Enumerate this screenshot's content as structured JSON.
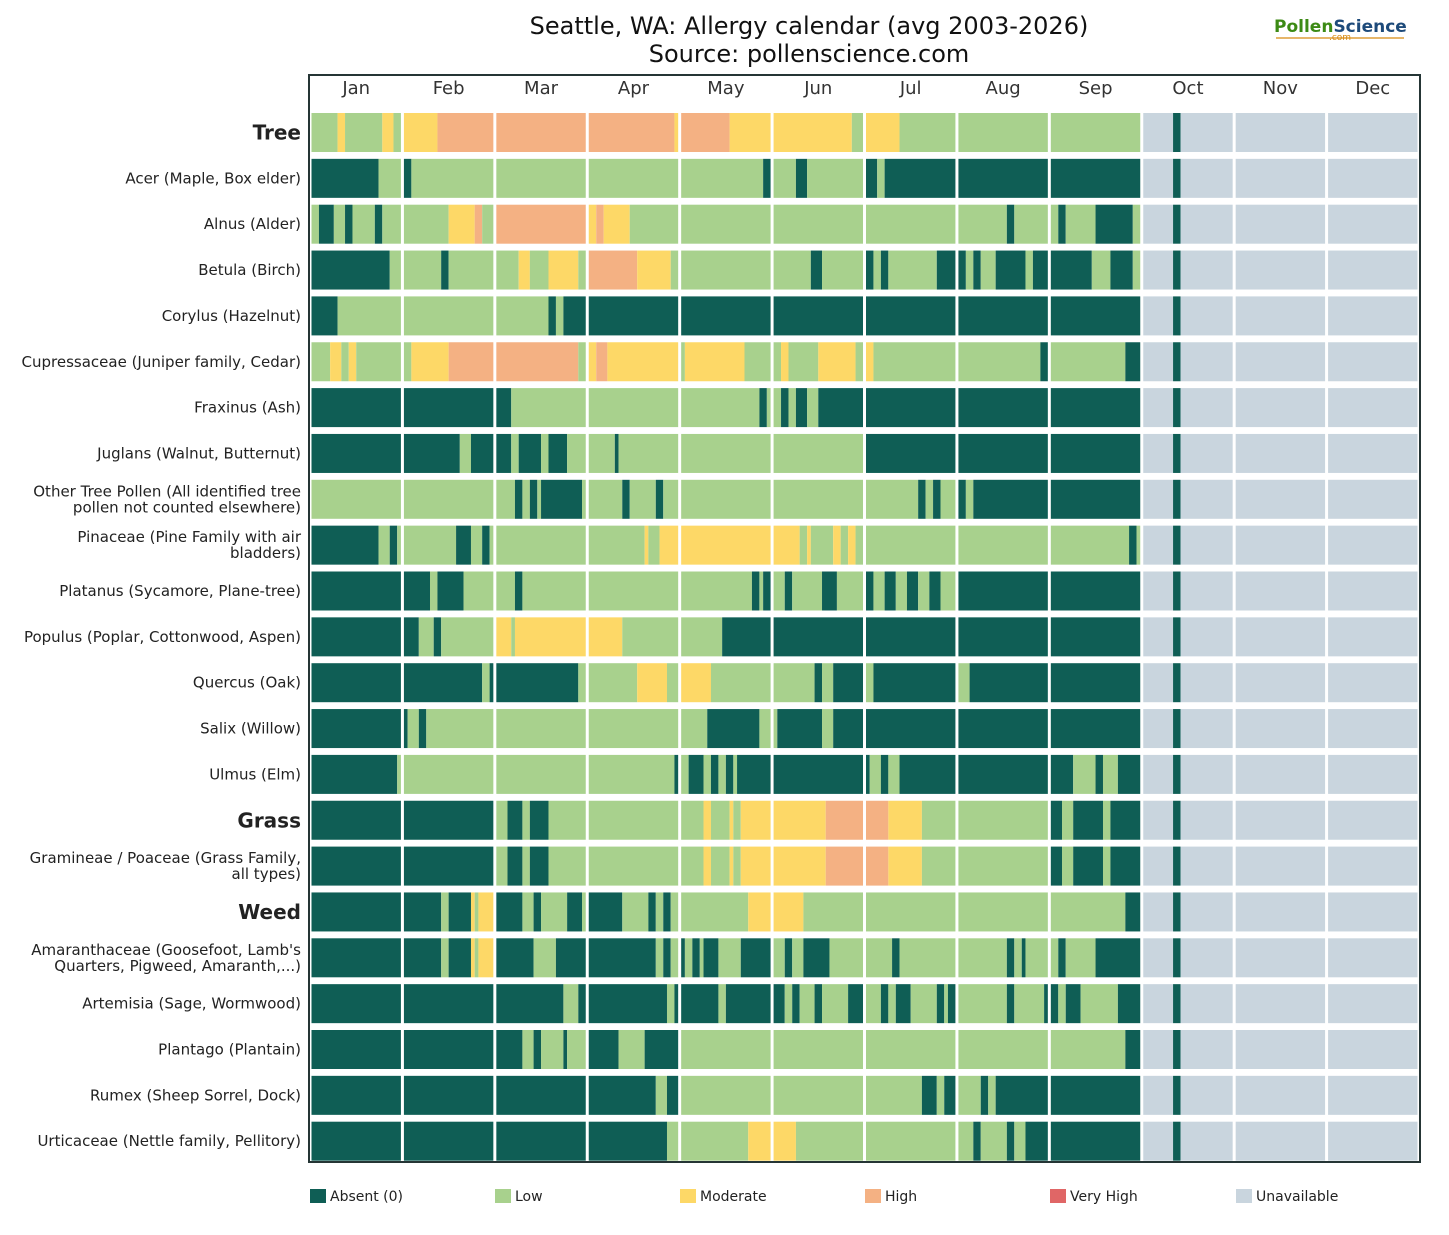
{
  "chart_data": {
    "type": "heatmap",
    "title": "Seattle, WA: Allergy calendar (avg 2003-2026)",
    "subtitle": "Source: pollenscience.com",
    "logo": {
      "part1": "Pollen",
      "part2": "Science",
      "sub": ".com"
    },
    "months": [
      "Jan",
      "Feb",
      "Mar",
      "Apr",
      "May",
      "Jun",
      "Jul",
      "Aug",
      "Sep",
      "Oct",
      "Nov",
      "Dec"
    ],
    "levels": [
      {
        "key": "A",
        "name": "Absent (0)",
        "color": "#0f5e55"
      },
      {
        "key": "L",
        "name": "Low",
        "color": "#a8d18d"
      },
      {
        "key": "M",
        "name": "Moderate",
        "color": "#fdd867"
      },
      {
        "key": "H",
        "name": "High",
        "color": "#f4b183"
      },
      {
        "key": "V",
        "name": "Very High",
        "color": "#e06666"
      },
      {
        "key": "U",
        "name": "Unavailable",
        "color": "#c9d5de"
      }
    ],
    "rows": [
      {
        "label": "Tree",
        "group": true,
        "segments": [
          "LLLLLLLMMLLLLLLLLLLMMMLL",
          "MMMMMMMMMHHHHHHHHHHHHHHH",
          "HHHHHHHHHHHHHHHHHHHHHHHH",
          "HHHHHHHHHHHHHHHHHHHHHHHM",
          "HHHHHHHHHHHHHMMMMMMMMMMM",
          "MMMMMMMMMMMMMMMMMMMMMLLL",
          "MMMMMMMMMLLLLLLLLLLLLLLL",
          "LLLLLLLLLLLLLLLLLLLLLLLL",
          "LLLLLLLLLLLLLLLLLLLLLLLL",
          "UUUUUUUUAAUUUUUUUUUUUUUU",
          "UUUUUUUUUUUUUUUUUUUUUUUU",
          "UUUUUUUUUUUUUUUUUUUUUUUU"
        ]
      },
      {
        "label": "Acer (Maple, Box elder)",
        "segments": [
          "AAAAAAAAAAAAAAAAAALLLLLL",
          "AALLLLLLLLLLLLLLLLLLLLLL",
          "LLLLLLLLLLLLLLLLLLLLLLLL",
          "LLLLLLLLLLLLLLLLLLLLLLLL",
          "LLLLLLLLLLLLLLLLLLLLLLAA",
          "LLLLLLAAALLLLLLLLLLLLLLL",
          "AAALLAAAAAAAAAAAAAAAAAAA",
          "AAAAAAAAAAAAAAAAAAAAAAAA",
          "AAAAAAAAAAAAAAAAAAAAAAAA",
          "UUUUUUUUAAUUUUUUUUUUUUUU",
          "UUUUUUUUUUUUUUUUUUUUUUUU",
          "UUUUUUUUUUUUUUUUUUUUUUUU"
        ]
      },
      {
        "label": "Alnus (Alder)",
        "segments": [
          "LLAAAALLLAALLLLLLAALLLLL",
          "LLLLLLLLLLLLMMMMMMMHHLLL",
          "HHHHHHHHHHHHHHHHHHHHHHHH",
          "MMHHMMMMMMMLLLLLLLLLLLLL",
          "LLLLLLLLLLLLLLLLLLLLLLLL",
          "LLLLLLLLLLLLLLLLLLLLLLLL",
          "LLLLLLLLLLLLLLLLLLLLLLLL",
          "LLLLLLLLLLLLLAALLLLLLLLL",
          "LLAALLLLLLLLAAAAAAAAAALL",
          "UUUUUUUUAAUUUUUUUUUUUUUU",
          "UUUUUUUUUUUUUUUUUUUUUUUU",
          "UUUUUUUUUUUUUUUUUUUUUUUU"
        ]
      },
      {
        "label": "Betula (Birch)",
        "segments": [
          "AAAAAAAAAAAAAAAAAAAAALLL",
          "LLLLLLLLLLAALLLLLLLLLLLL",
          "LLLLLLMMMLLLLLMMMMMMMMLL",
          "HHHHHHHHHHHHHMMMMMMMMMLL",
          "LLLLLLLLLLLLLLLLLLLLLLLL",
          "LLLLLLLLLLAAALLLLLLLLLLL",
          "AALLAALLLLLLLLLLLLLAAAAA",
          "AALLAALLLLAAAAAAAALLAAAA",
          "AAAAAAAAAAALLLLLAAAAAALL",
          "UUUUUUUUAAUUUUUUUUUUUUUU",
          "UUUUUUUUUUUUUUUUUUUUUUUU",
          "UUUUUUUUUUUUUUUUUUUUUUUU"
        ]
      },
      {
        "label": "Corylus (Hazelnut)",
        "segments": [
          "AAAAAAALLLLLLLLLLLLLLLLL",
          "LLLLLLLLLLLLLLLLLLLLLLLL",
          "LLLLLLLLLLLLLLAALLAAAAAA",
          "AAAAAAAAAAAAAAAAAAAAAAAA",
          "AAAAAAAAAAAAAAAAAAAAAAAA",
          "AAAAAAAAAAAAAAAAAAAAAAAA",
          "AAAAAAAAAAAAAAAAAAAAAAAA",
          "AAAAAAAAAAAAAAAAAAAAAAAA",
          "AAAAAAAAAAAAAAAAAAAAAAAA",
          "UUUUUUUUAAUUUUUUUUUUUUUU",
          "UUUUUUUUUUUUUUUUUUUUUUUU",
          "UUUUUUUUUUUUUUUUUUUUUUUU"
        ]
      },
      {
        "label": "Cupressaceae (Juniper family, Cedar)",
        "segments": [
          "LLLLLMMMLLMMLLLLLLLLLLLL",
          "LLMMMMMMMMMMHHHHHHHHHHHH",
          "HHHHHHHHHHHHHHHHHHHHHHLL",
          "MMHHHMMMMMMMMMMMMMMMMMMM",
          "LMMMMMMMMMMMMMMMMLLLLLLL",
          "LLMMLLLLLLLLMMMMMMMMMMLL",
          "MMLLLLLLLLLLLLLLLLLLLLLL",
          "LLLLLLLLLLLLLLLLLLLLLLAA",
          "LLLLLLLLLLLLLLLLLLLLAAAA",
          "UUUUUUUUAAUUUUUUUUUUUUUU",
          "UUUUUUUUUUUUUUUUUUUUUUUU",
          "UUUUUUUUUUUUUUUUUUUUUUUU"
        ]
      },
      {
        "label": "Fraxinus (Ash)",
        "segments": [
          "AAAAAAAAAAAAAAAAAAAAAAAA",
          "AAAAAAAAAAAAAAAAAAAAAAAA",
          "AAAALLLLLLLLLLLLLLLLLLLL",
          "LLLLLLLLLLLLLLLLLLLLLLLL",
          "LLLLLLLLLLLLLLLLLLLLLAAL",
          "LLAALLAAALLLAAAAAAAAAAAA",
          "AAAAAAAAAAAAAAAAAAAAAAAA",
          "AAAAAAAAAAAAAAAAAAAAAAAA",
          "AAAAAAAAAAAAAAAAAAAAAAAA",
          "UUUUUUUUAAUUUUUUUUUUUUUU",
          "UUUUUUUUUUUUUUUUUUUUUUUU",
          "UUUUUUUUUUUUUUUUUUUUUUUU"
        ]
      },
      {
        "label": "Juglans (Walnut, Butternut)",
        "segments": [
          "AAAAAAAAAAAAAAAAAAAAAAAA",
          "AAAAAAAAAAAAAAALLLAAAAAA",
          "AAAALLAAAAAALLAAAAALLLLL",
          "LLLLLLLALLLLLLLLLLLLLLLL",
          "LLLLLLLLLLLLLLLLLLLLLLLL",
          "LLLLLLLLLLLLLLLLLLLLLLLL",
          "AAAAAAAAAAAAAAAAAAAAAAAA",
          "AAAAAAAAAAAAAAAAAAAAAAAA",
          "AAAAAAAAAAAAAAAAAAAAAAAA",
          "UUUUUUUUAAUUUUUUUUUUUUUU",
          "UUUUUUUUUUUUUUUUUUUUUUUU",
          "UUUUUUUUUUUUUUUUUUUUUUUU"
        ]
      },
      {
        "label": "Other Tree Pollen (All identified tree pollen not counted elsewhere)",
        "segments": [
          "LLLLLLLLLLLLLLLLLLLLLLLL",
          "LLLLLLLLLLLLLLLLLLLLLLLL",
          "LLLLLAALLAALAAAAAAAAAAAL",
          "LLLLLLLLLAALLLLLLLAALLLL",
          "LLLLLLLLLLLLLLLLLLLLLLLL",
          "LLLLLLLLLLLLLLLLLLLLLLLL",
          "LLLLLLLLLLLLLLAALLAALLLL",
          "AALLAAAAAAAAAAAAAAAAAAAA",
          "AAAAAAAAAAAAAAAAAAAAAAAA",
          "UUUUUUUUAAUUUUUUUUUUUUUU",
          "UUUUUUUUUUUUUUUUUUUUUUUU",
          "UUUUUUUUUUUUUUUUUUUUUUUU"
        ]
      },
      {
        "label": "Pinaceae (Pine Family with air bladders)",
        "segments": [
          "AAAAAAAAAAAAAAAAAALLLAAL",
          "LLLLLLLLLLLLLLAAAALLLAAL",
          "LLLLLLLLLLLLLLLLLLLLLLLL",
          "LLLLLLLLLLLLLLLMLLLMMMMM",
          "MMMMMMMMMMMMMMMMMMMMMMMM",
          "MMMMMMMLLMLLLLLLMMLLMMLL",
          "LLLLLLLLLLLLLLLLLLLLLLLL",
          "LLLLLLLLLLLLLLLLLLLLLLLL",
          "LLLLLLLLLLLLLLLLLLLLLAAL",
          "UUUUUUUUAAUUUUUUUUUUUUUU",
          "UUUUUUUUUUUUUUUUUUUUUUUU",
          "UUUUUUUUUUUUUUUUUUUUUUUU"
        ]
      },
      {
        "label": "Platanus (Sycamore, Plane-tree)",
        "segments": [
          "AAAAAAAAAAAAAAAAAAAAAAAA",
          "AAAAAAALLAAAAAAALLLLLLLL",
          "LLLLLAALLLLLLLLLLLLLLLLL",
          "LLLLLLLLLLLLLLLLLLLLLLLL",
          "LLLLLLLLLLLLLLLLLLLAALAA",
          "LLLAALLLLLLLLAAAALLLLLLL",
          "AALLLAAALLLAAALLLAAALLLL",
          "AAAAAAAAAAAAAAAAAAAAAAAA",
          "AAAAAAAAAAAAAAAAAAAAAAAA",
          "UUUUUUUUAAUUUUUUUUUUUUUU",
          "UUUUUUUUUUUUUUUUUUUUUUUU",
          "UUUUUUUUUUUUUUUUUUUUUUUU"
        ]
      },
      {
        "label": "Populus (Poplar, Cottonwood, Aspen)",
        "segments": [
          "AAAAAAAAAAAAAAAAAAAAAAAA",
          "AAAALLLLAALLLLLLLLLLLLLL",
          "MMMMLMMMMMMMMMMMMMMMMMMM",
          "MMMMMMMMMLLLLLLLLLLLLLLL",
          "LLLLLLLLLLLAAAAAAAAAAAAA",
          "AAAAAAAAAAAAAAAAAAAAAAAA",
          "AAAAAAAAAAAAAAAAAAAAAAAA",
          "AAAAAAAAAAAAAAAAAAAAAAAA",
          "AAAAAAAAAAAAAAAAAAAAAAAA",
          "UUUUUUUUAAUUUUUUUUUUUUUU",
          "UUUUUUUUUUUUUUUUUUUUUUUU",
          "UUUUUUUUUUUUUUUUUUUUUUUU"
        ]
      },
      {
        "label": "Quercus (Oak)",
        "segments": [
          "AAAAAAAAAAAAAAAAAAAAAAAA",
          "AAAAAAAAAAAAAAAAAAAAALLA",
          "AAAAAAAAAAAAAAAAAAAAAALL",
          "LLLLLLLLLLLLLMMMMMMMMLLL",
          "MMMMMMMMLLLLLLLLLLLLLLLL",
          "LLLLLLLLLLLAALLLAAAAAAAA",
          "LLAAAAAAAAAAAAAAAAAAAAAA",
          "LLLAAAAAAAAAAAAAAAAAAAAA",
          "AAAAAAAAAAAAAAAAAAAAAAAA",
          "UUUUUUUUAAUUUUUUUUUUUUUU",
          "UUUUUUUUUUUUUUUUUUUUUUUU",
          "UUUUUUUUUUUUUUUUUUUUUUUU"
        ]
      },
      {
        "label": "Salix (Willow)",
        "segments": [
          "AAAAAAAAAAAAAAAAAAAAAAAA",
          "ALLLAALLLLLLLLLLLLLLLLLL",
          "LLLLLLLLLLLLLLLLLLLLLLLL",
          "LLLLLLLLLLLLLLLLLLLLLLLL",
          "LLLLLLLAAAAAAAAAAAAAALLL",
          "LAAAAAAAAAAAALLLAAAAAAAA",
          "AAAAAAAAAAAAAAAAAAAAAAAA",
          "AAAAAAAAAAAAAAAAAAAAAAAA",
          "AAAAAAAAAAAAAAAAAAAAAAAA",
          "UUUUUUUUAAUUUUUUUUUUUUUU",
          "UUUUUUUUUUUUUUUUUUUUUUUU",
          "UUUUUUUUUUUUUUUUUUUUUUUU"
        ]
      },
      {
        "label": "Ulmus (Elm)",
        "segments": [
          "AAAAAAAAAAAAAAAAAAAAAAAL",
          "LLLLLLLLLLLLLLLLLLLLLLLL",
          "LLLLLLLLLLLLLLLLLLLLLLLL",
          "LLLLLLLLLLLLLLLLLLLLLLLA",
          "LLAAAALLAALLAALAAAAAAAAA",
          "AAAAAAAAAAAAAAAAAAAAAAAA",
          "ALLLAALLLAAAAAAAAAAAAAAA",
          "AAAAAAAAAAAAAAAAAAAAAAAA",
          "AAAAAALLLLLLAALLLLAAAAAA",
          "UUUUUUUUAAUUUUUUUUUUUUUU",
          "UUUUUUUUUUUUUUUUUUUUUUUU",
          "UUUUUUUUUUUUUUUUUUUUUUUU"
        ]
      },
      {
        "label": "Grass",
        "group": true,
        "segments": [
          "AAAAAAAAAAAAAAAAAAAAAAAA",
          "AAAAAAAAAAAAAAAAAAAAAAAA",
          "LLLAAAALLAAAAALLLLLLLLLL",
          "LLLLLLLLLLLLLLLLLLLLLLLL",
          "LLLLLLMMLLLLLMLLMMMMMMMM",
          "MMMMMMMMMMMMMMHHHHHHHHHH",
          "HHHHHHMMMMMMMMMLLLLLLLLL",
          "LLLLLLLLLLLLLLLLLLLLLLLL",
          "AAALLLAAAAAAAALLAAAAAAAA",
          "UUUUUUUUAAUUUUUUUUUUUUUU",
          "UUUUUUUUUUUUUUUUUUUUUUUU",
          "UUUUUUUUUUUUUUUUUUUUUUUU"
        ]
      },
      {
        "label": "Gramineae / Poaceae (Grass Family, all types)",
        "segments": [
          "AAAAAAAAAAAAAAAAAAAAAAAA",
          "AAAAAAAAAAAAAAAAAAAAAAAA",
          "LLLAAAALLAAAAALLLLLLLLLL",
          "LLLLLLLLLLLLLLLLLLLLLLLL",
          "LLLLLLMMLLLLLMLLMMMMMMMM",
          "MMMMMMMMMMMMMMHHHHHHHHHH",
          "HHHHHHMMMMMMMMMLLLLLLLLL",
          "LLLLLLLLLLLLLLLLLLLLLLLL",
          "AAALLLAAAAAAAALLAAAAAAAA",
          "UUUUUUUUAAUUUUUUUUUUUUUU",
          "UUUUUUUUUUUUUUUUUUUUUUUU",
          "UUUUUUUUUUUUUUUUUUUUUUUU"
        ]
      },
      {
        "label": "Weed",
        "group": true,
        "segments": [
          "AAAAAAAAAAAAAAAAAAAAAAAA",
          "AAAAAAAAAALLAAAAAAMLMMMM",
          "AAAAAAALLLAALLLLLLLAAAAL",
          "AAAAAAAAALLLLLLLAALLAALL",
          "LLLLLLLLLLLLLLLLLLMMMMMM",
          "MMMMMMMMLLLLLLLLLLLLLLLL",
          "LLLLLLLLLLLLLLLLLLLLLLLL",
          "LLLLLLLLLLLLLLLLLLLLLLLL",
          "LLLLLLLLLLLLLLLLLLLLAAAA",
          "UUUUUUUUAAUUUUUUUUUUUUUU",
          "UUUUUUUUUUUUUUUUUUUUUUUU",
          "UUUUUUUUUUUUUUUUUUUUUUUU"
        ]
      },
      {
        "label": "Amaranthaceae (Goosefoot, Lamb's Quarters, Pigweed, Amaranth,...)",
        "segments": [
          "AAAAAAAAAAAAAAAAAAAAAAAA",
          "AAAAAAAAAALLAAAAAAMLMMMM",
          "AAAAAAAAAALLLLLLAAAAAAAA",
          "AAAAAAAAAAAAAAAAAALLAALL",
          "ALLAALAAAALLLLLLAAAAAAAA",
          "LLLAALLLAAAAAAALLLLLLLLL",
          "LLLLLLLAALLLLLLLLLLLLLLL",
          "LLLLLLLLLLLLLAALLALLLLLL",
          "LLAALLLLLLLLAAAAAAAAAAAA",
          "UUUUUUUUAAUUUUUUUUUUUUUU",
          "UUUUUUUUUUUUUUUUUUUUUUUU",
          "UUUUUUUUUUUUUUUUUUUUUUUU"
        ]
      },
      {
        "label": "Artemisia (Sage, Wormwood)",
        "segments": [
          "AAAAAAAAAAAAAAAAAAAAAAAA",
          "AAAAAAAAAAAAAAAAAAAAAAAA",
          "AAAAAAAAAAAAAAAAAALLLLAA",
          "AAAAAAAAAAAAAAAAAAAAALLA",
          "AAAAAAAAAALLAAAAAAAAAAAA",
          "AAALLAALLLLAALLLLLLLAAAA",
          "LLLLAALLAAAALLLLLLLAALAA",
          "LLLLLLLLLLLLLAALLLLLLLLA",
          "AALLAAAALLLLLLLLLLAAAAAA",
          "UUUUUUUUAAUUUUUUUUUUUUUU",
          "UUUUUUUUUUUUUUUUUUUUUUUU",
          "UUUUUUUUUUUUUUUUUUUUUUUU"
        ]
      },
      {
        "label": "Plantago (Plantain)",
        "segments": [
          "AAAAAAAAAAAAAAAAAAAAAAAA",
          "AAAAAAAAAAAAAAAAAAAAAAAA",
          "AAAAAAALLLAALLLLLLALLLLL",
          "AAAAAAAALLLLLLLAAAAAAAAA",
          "LLLLLLLLLLLLLLLLLLLLLLLL",
          "LLLLLLLLLLLLLLLLLLLLLLLL",
          "LLLLLLLLLLLLLLLLLLLLLLLL",
          "LLLLLLLLLLLLLLLLLLLLLLLL",
          "LLLLLLLLLLLLLLLLLLLLAAAA",
          "UUUUUUUUAAUUUUUUUUUUUUUU",
          "UUUUUUUUUUUUUUUUUUUUUUUU",
          "UUUUUUUUUUUUUUUUUUUUUUUU"
        ]
      },
      {
        "label": "Rumex (Sheep Sorrel, Dock)",
        "segments": [
          "AAAAAAAAAAAAAAAAAAAAAAAA",
          "AAAAAAAAAAAAAAAAAAAAAAAA",
          "AAAAAAAAAAAAAAAAAAAAAAAA",
          "AAAAAAAAAAAAAAAAAALLLAAA",
          "LLLLLLLLLLLLLLLLLLLLLLLL",
          "LLLLLLLLLLLLLLLLLLLLLLLL",
          "LLLLLLLLLLLLLLLAAAALLAAA",
          "LLLLLLAALLAAAAAAAAAAAAAA",
          "AAAAAAAAAAAAAAAAAAAAAAAA",
          "UUUUUUUUAAUUUUUUUUUUUUUU",
          "UUUUUUUUUUUUUUUUUUUUUUUU",
          "UUUUUUUUUUUUUUUUUUUUUUUU"
        ]
      },
      {
        "label": "Urticaceae (Nettle family, Pellitory)",
        "segments": [
          "AAAAAAAAAAAAAAAAAAAAAAAA",
          "AAAAAAAAAAAAAAAAAAAAAAAA",
          "AAAAAAAAAAAAAAAAAAAAAAAA",
          "AAAAAAAAAAAAAAAAAAAAALLL",
          "LLLLLLLLLLLLLLLLLLMMMMMM",
          "MMMMMMLLLLLLLLLLLLLLLLLL",
          "LLLLLLLLLLLLLLLLLLLLLLLL",
          "LLLLAALLLLLLLAALLLAAAAAA",
          "AAAAAAAAAAAAAAAAAAAAAAAA",
          "UUUUUUUUAAUUUUUUUUUUUUUU",
          "UUUUUUUUUUUUUUUUUUUUUUUU",
          "UUUUUUUUUUUUUUUUUUUUUUUU"
        ]
      }
    ]
  }
}
